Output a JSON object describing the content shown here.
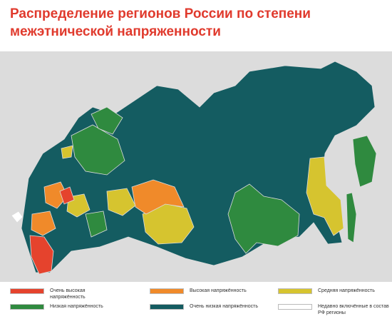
{
  "header": {
    "title_lines": [
      "Распределение регионов России по степени",
      "межэтнической напряженности"
    ]
  },
  "legend": {
    "items": [
      {
        "label": "Очень высокая напряжённость",
        "color": "#e5432d"
      },
      {
        "label": "Высокая напряжённость",
        "color": "#f08a2a"
      },
      {
        "label": "Средняя напряжённость",
        "color": "#d6c42f"
      },
      {
        "label": "Низкая напряжённость",
        "color": "#2f8a3f"
      },
      {
        "label": "Очень низкая напряжённость",
        "color": "#145c61"
      },
      {
        "label": "Недавно включённые в состав РФ регионы",
        "color": "#ffffff"
      }
    ]
  }
}
